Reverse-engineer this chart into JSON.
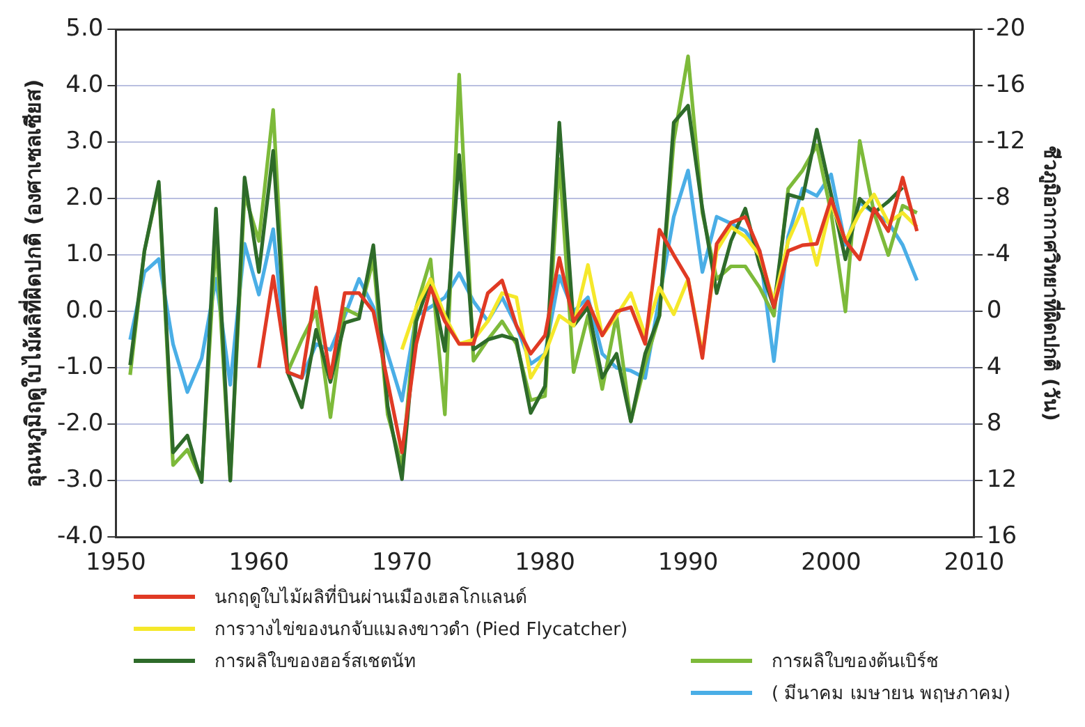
{
  "chart_data": {
    "type": "line",
    "ylabel": "อุณหภูมิฤดูใบไม้ผลิที่ผิดปกติ (องศาเซลเซียส)",
    "y2label": "ชีวภูมิอากาศวิทยาที่ผิดปกติ (วัน)",
    "xlim": [
      1950,
      2010
    ],
    "xticks": [
      1950,
      1960,
      1970,
      1980,
      1990,
      2000,
      2010
    ],
    "ylim": [
      -4,
      5
    ],
    "yticks": [
      {
        "value": -4,
        "label": "-4.0"
      },
      {
        "value": -3,
        "label": "-3.0"
      },
      {
        "value": -2,
        "label": "-2.0"
      },
      {
        "value": -1,
        "label": "-1.0"
      },
      {
        "value": 0,
        "label": "0.0"
      },
      {
        "value": 1,
        "label": "1.0"
      },
      {
        "value": 2,
        "label": "2.0"
      },
      {
        "value": 3,
        "label": "3.0"
      },
      {
        "value": 4,
        "label": "4.0"
      },
      {
        "value": 5,
        "label": "5.0"
      }
    ],
    "y2lim": [
      16,
      -20
    ],
    "y2ticks": [
      16,
      12,
      8,
      4,
      0,
      -4,
      -8,
      -12,
      -16,
      -20
    ],
    "grid": "y",
    "legend": "bottom",
    "marker": "none",
    "line_style": "solid",
    "series": [
      {
        "name": "นกฤดูใบไม้ผลิที่บินผ่านเมืองเฮลโกแลนด์",
        "color": "#e03a24",
        "axis": "y2",
        "x": [
          1960,
          1961,
          1962,
          1963,
          1964,
          1965,
          1966,
          1967,
          1968,
          1969,
          1970,
          1971,
          1972,
          1973,
          1974,
          1975,
          1976,
          1977,
          1978,
          1979,
          1980,
          1981,
          1982,
          1983,
          1984,
          1985,
          1986,
          1987,
          1988,
          1989,
          1990,
          1991,
          1992,
          1993,
          1994,
          1995,
          1996,
          1997,
          1998,
          1999,
          2000,
          2001,
          2002,
          2003,
          2004,
          2005,
          2006
        ],
        "values": [
          4,
          -2.5,
          4.3,
          4.7,
          -1.7,
          4.7,
          -1.3,
          -1.3,
          0,
          5,
          10,
          2.3,
          -1.7,
          0.7,
          2.3,
          2.3,
          -1.3,
          -2.2,
          1,
          3,
          1.7,
          -3.8,
          0.7,
          -0.7,
          1.7,
          0,
          -0.3,
          2.3,
          -5.8,
          -4,
          -2.3,
          3.3,
          -4.8,
          -6.3,
          -6.7,
          -4.3,
          -0.3,
          -4.3,
          -4.7,
          -4.8,
          -8,
          -5,
          -3.7,
          -7.3,
          -5.7,
          -9.5,
          -5.7
        ]
      },
      {
        "name": "การวางไข่ของนกจับแมลงขาวดำ (Pied Flycatcher)",
        "color": "#f5e82a",
        "axis": "y2",
        "x": [
          1970,
          1971,
          1972,
          1973,
          1974,
          1975,
          1976,
          1977,
          1978,
          1979,
          1980,
          1981,
          1982,
          1983,
          1984,
          1985,
          1986,
          1987,
          1988,
          1989,
          1990,
          1991,
          1992,
          1993,
          1994,
          1995,
          1996,
          1997,
          1998,
          1999,
          2000,
          2001,
          2002,
          2003,
          2004,
          2005,
          2006
        ],
        "values": [
          2.7,
          -0.3,
          -2.3,
          0.3,
          2.3,
          2,
          0.7,
          -1.3,
          -1,
          4.7,
          3,
          0.3,
          1,
          -3.3,
          1.7,
          0.3,
          -1.3,
          1.7,
          -1.7,
          0.2,
          -2.3,
          3,
          -4.3,
          -6,
          -5.3,
          -4,
          -0.7,
          -5,
          -7.3,
          -3.3,
          -7.7,
          -5,
          -7,
          -8.3,
          -6.3,
          -7,
          -6
        ]
      },
      {
        "name": "การผลิใบของฮอร์สเชตนัท",
        "color": "#2e6b2a",
        "axis": "y2",
        "x": [
          1951,
          1952,
          1953,
          1954,
          1955,
          1956,
          1957,
          1958,
          1959,
          1960,
          1961,
          1962,
          1963,
          1964,
          1965,
          1966,
          1967,
          1968,
          1969,
          1970,
          1971,
          1972,
          1973,
          1974,
          1975,
          1976,
          1977,
          1978,
          1979,
          1980,
          1981,
          1982,
          1983,
          1984,
          1985,
          1986,
          1987,
          1988,
          1989,
          1990,
          1991,
          1992,
          1993,
          1994,
          1995,
          1996,
          1997,
          1998,
          1999,
          2000,
          2001,
          2002,
          2003,
          2004,
          2005
        ],
        "values": [
          3.8,
          -4.3,
          -9.2,
          10,
          8.8,
          12.1,
          -7.3,
          12,
          -9.5,
          -2.8,
          -11.4,
          4.3,
          6.8,
          1.3,
          5,
          0.8,
          0.5,
          -4.7,
          6.7,
          11.9,
          0.7,
          -2.3,
          2.8,
          -11.1,
          2.7,
          2,
          1.7,
          2,
          7.2,
          5.3,
          -13.4,
          1,
          -0.3,
          4.7,
          3,
          7.8,
          3,
          0.3,
          -13.4,
          -14.6,
          -7.3,
          -1.3,
          -5,
          -7.3,
          -3.3,
          -0.3,
          -8.3,
          -8,
          -12.9,
          -8.3,
          -3.7,
          -8,
          -7,
          -7.8,
          -8.8
        ]
      },
      {
        "name": "การผลิใบของต้นเบิร์ช",
        "color": "#7dba3a",
        "axis": "y2",
        "x": [
          1951,
          1952,
          1953,
          1954,
          1955,
          1956,
          1957,
          1958,
          1959,
          1960,
          1961,
          1962,
          1963,
          1964,
          1965,
          1966,
          1967,
          1968,
          1969,
          1970,
          1971,
          1972,
          1973,
          1974,
          1975,
          1976,
          1977,
          1978,
          1979,
          1980,
          1981,
          1982,
          1983,
          1984,
          1985,
          1986,
          1987,
          1988,
          1989,
          1990,
          1991,
          1992,
          1993,
          1994,
          1995,
          1996,
          1997,
          1998,
          1999,
          2000,
          2001,
          2002,
          2003,
          2004,
          2005,
          2006
        ],
        "values": [
          4.5,
          -4.3,
          -9,
          10.9,
          9.8,
          12,
          -5.3,
          12,
          -8.3,
          -5,
          -14.3,
          4.3,
          2,
          0,
          7.5,
          -0.2,
          0.3,
          -3.7,
          7.3,
          11,
          -0.3,
          -3.7,
          7.3,
          -16.8,
          3.5,
          2,
          0.7,
          2.3,
          6.3,
          6,
          -10.8,
          4.3,
          0.3,
          5.5,
          0.3,
          7.8,
          3.7,
          0.3,
          -12.1,
          -18.1,
          -7,
          -2.3,
          -3.2,
          -3.2,
          -1.7,
          0.3,
          -8.7,
          -10,
          -11.8,
          -7,
          0,
          -12.1,
          -7,
          -4,
          -7.5,
          -7
        ]
      },
      {
        "name": "( มีนาคม เมษายน พฤษภาคม)",
        "color": "#4aaee6",
        "axis": "y",
        "x": [
          1951,
          1952,
          1953,
          1954,
          1955,
          1956,
          1957,
          1958,
          1959,
          1960,
          1961,
          1962,
          1963,
          1964,
          1965,
          1966,
          1967,
          1968,
          1969,
          1970,
          1971,
          1972,
          1973,
          1974,
          1975,
          1976,
          1977,
          1978,
          1979,
          1980,
          1981,
          1982,
          1983,
          1984,
          1985,
          1986,
          1987,
          1988,
          1989,
          1990,
          1991,
          1992,
          1993,
          1994,
          1995,
          1996,
          1997,
          1998,
          1999,
          2000,
          2001,
          2002,
          2003,
          2004,
          2005,
          2006
        ],
        "values": [
          -0.5,
          0.7,
          0.93,
          -0.58,
          -1.43,
          -0.83,
          0.58,
          -1.3,
          1.2,
          0.3,
          1.46,
          -1.08,
          -1.18,
          -0.58,
          -0.68,
          -0.08,
          0.58,
          0.08,
          -0.75,
          -1.58,
          -0.08,
          0.08,
          0.25,
          0.68,
          0.18,
          -0.17,
          0.25,
          -0.25,
          -0.93,
          -0.75,
          0.63,
          0,
          0.25,
          -0.75,
          -1,
          -1.05,
          -1.18,
          0.25,
          1.68,
          2.5,
          0.7,
          1.68,
          1.56,
          1.43,
          1.08,
          -0.88,
          1.33,
          2.18,
          2.05,
          2.43,
          1.18,
          1.93,
          1.75,
          1.58,
          1.18,
          0.55
        ]
      }
    ]
  }
}
